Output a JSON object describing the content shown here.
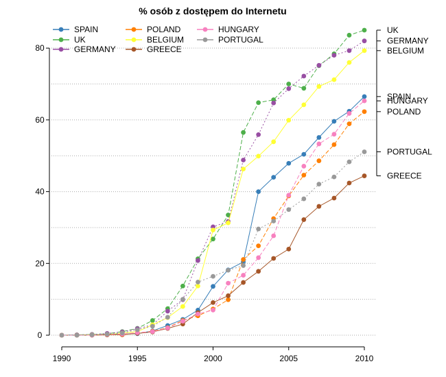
{
  "chart_data": {
    "type": "line",
    "title": "% osób z dostępem do Internetu",
    "xlabel": "",
    "ylabel": "",
    "x": [
      1990,
      1991,
      1992,
      1993,
      1994,
      1995,
      1996,
      1997,
      1998,
      1999,
      2000,
      2001,
      2002,
      2003,
      2004,
      2005,
      2006,
      2007,
      2008,
      2009,
      2010
    ],
    "xlim": [
      1990,
      2010
    ],
    "ylim": [
      0,
      85
    ],
    "x_ticks": [
      1990,
      1995,
      2000,
      2005,
      2010
    ],
    "y_ticks": [
      0,
      20,
      40,
      60,
      80
    ],
    "grid": true,
    "legend_position": "top-left",
    "series": [
      {
        "name": "SPAIN",
        "color": "#377EB8",
        "dash": "",
        "values": [
          0,
          0,
          0.1,
          0.2,
          0.3,
          0.4,
          1.2,
          2.7,
          4.4,
          7.0,
          13.6,
          18.2,
          20.4,
          40.0,
          44.0,
          47.9,
          50.4,
          55.1,
          59.6,
          62.4,
          66.5
        ]
      },
      {
        "name": "UK",
        "color": "#4DAF4A",
        "dash": "6,3",
        "values": [
          0,
          0.1,
          0.2,
          0.4,
          1.0,
          1.9,
          4.1,
          7.4,
          13.7,
          21.3,
          26.8,
          33.5,
          56.5,
          64.8,
          65.6,
          70.0,
          68.8,
          75.1,
          78.4,
          83.6,
          85.0
        ]
      },
      {
        "name": "GERMANY",
        "color": "#984EA3",
        "dash": "2,3",
        "values": [
          0,
          0.1,
          0.2,
          0.5,
          0.9,
          1.8,
          2.9,
          6.7,
          9.9,
          20.8,
          30.2,
          31.7,
          48.8,
          55.9,
          64.7,
          68.7,
          72.2,
          75.2,
          78.0,
          79.3,
          82.0
        ]
      },
      {
        "name": "POLAND",
        "color": "#FF7F00",
        "dash": "6,3",
        "values": [
          0,
          0,
          0,
          0.1,
          0.1,
          0.6,
          1.1,
          2.1,
          4.1,
          5.4,
          7.3,
          9.9,
          21.1,
          24.9,
          32.5,
          38.8,
          44.6,
          48.6,
          53.1,
          58.9,
          62.3
        ]
      },
      {
        "name": "BELGIUM",
        "color": "#FFFF33",
        "dash": "",
        "values": [
          0,
          0,
          0.1,
          0.2,
          0.6,
          1.0,
          2.9,
          4.9,
          8.0,
          13.7,
          29.3,
          31.3,
          46.3,
          49.9,
          53.9,
          59.9,
          64.2,
          69.3,
          71.2,
          76.0,
          79.3
        ]
      },
      {
        "name": "GREECE",
        "color": "#A65628",
        "dash": "",
        "values": [
          0,
          0,
          0,
          0.1,
          0.2,
          0.5,
          0.9,
          1.9,
          3.1,
          6.3,
          9.1,
          11.0,
          14.7,
          17.8,
          21.4,
          24.0,
          32.2,
          35.9,
          38.2,
          42.4,
          44.4
        ]
      },
      {
        "name": "HUNGARY",
        "color": "#F781BF",
        "dash": "6,3",
        "values": [
          0,
          0,
          0,
          0.2,
          0.3,
          0.7,
          1.0,
          2.0,
          3.9,
          5.9,
          7.0,
          14.5,
          16.7,
          21.6,
          27.7,
          39.0,
          47.1,
          53.3,
          56.0,
          61.8,
          65.3
        ]
      },
      {
        "name": "PORTUGAL",
        "color": "#999999",
        "dash": "2,3",
        "values": [
          0,
          0,
          0.1,
          0.3,
          0.6,
          1.5,
          2.5,
          5.0,
          10.0,
          14.8,
          16.4,
          18.1,
          19.4,
          29.6,
          31.8,
          35.0,
          38.0,
          42.1,
          44.1,
          48.3,
          51.1
        ]
      }
    ],
    "end_labels": [
      "UK",
      "GERMANY",
      "BELGIUM",
      "SPAIN",
      "HUNGARY",
      "POLAND",
      "PORTUGAL",
      "GREECE"
    ]
  }
}
